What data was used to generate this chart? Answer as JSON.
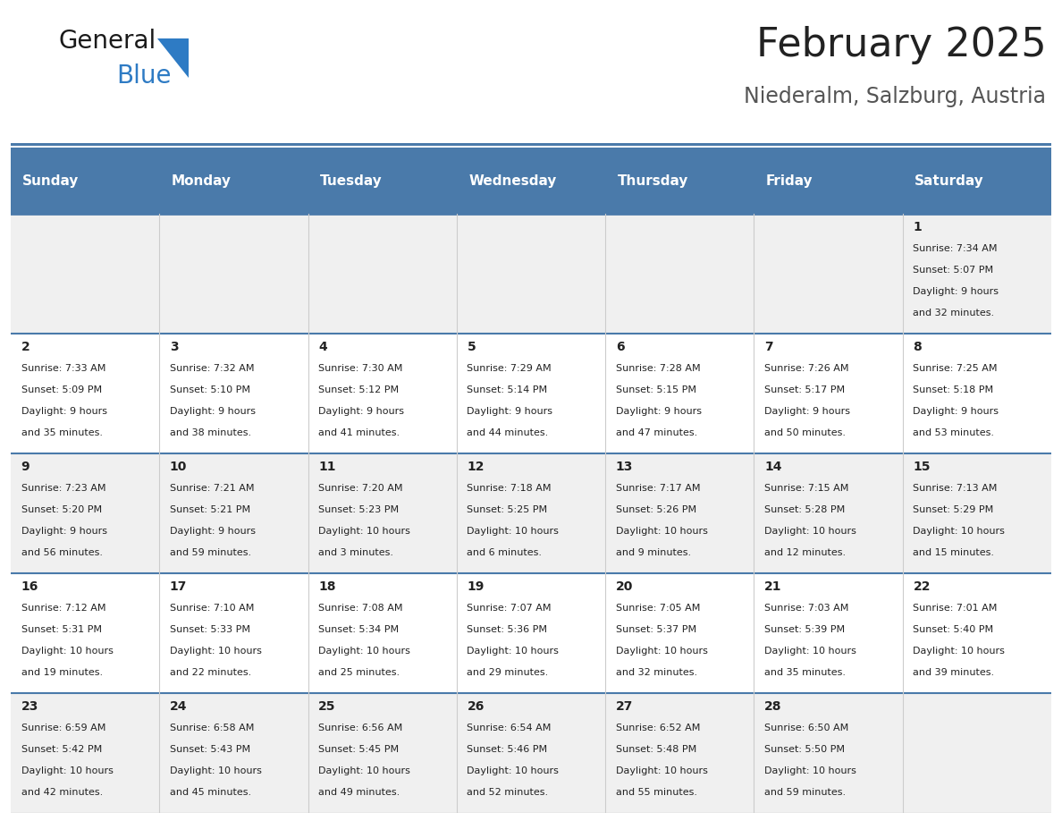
{
  "title": "February 2025",
  "subtitle": "Niederalm, Salzburg, Austria",
  "header_color": "#4a7aaa",
  "header_text_color": "#ffffff",
  "cell_bg_light": "#f0f0f0",
  "cell_bg_white": "#ffffff",
  "border_color": "#4a7aaa",
  "grid_color": "#cccccc",
  "text_color": "#222222",
  "day_names": [
    "Sunday",
    "Monday",
    "Tuesday",
    "Wednesday",
    "Thursday",
    "Friday",
    "Saturday"
  ],
  "title_fontsize": 32,
  "subtitle_fontsize": 17,
  "header_fontsize": 11,
  "day_num_fontsize": 10,
  "info_fontsize": 8,
  "days": [
    {
      "day": 1,
      "col": 6,
      "row": 0,
      "sunrise": "7:34 AM",
      "sunset": "5:07 PM",
      "daylight_h": "9 hours",
      "daylight_m": "32 minutes"
    },
    {
      "day": 2,
      "col": 0,
      "row": 1,
      "sunrise": "7:33 AM",
      "sunset": "5:09 PM",
      "daylight_h": "9 hours",
      "daylight_m": "35 minutes"
    },
    {
      "day": 3,
      "col": 1,
      "row": 1,
      "sunrise": "7:32 AM",
      "sunset": "5:10 PM",
      "daylight_h": "9 hours",
      "daylight_m": "38 minutes"
    },
    {
      "day": 4,
      "col": 2,
      "row": 1,
      "sunrise": "7:30 AM",
      "sunset": "5:12 PM",
      "daylight_h": "9 hours",
      "daylight_m": "41 minutes"
    },
    {
      "day": 5,
      "col": 3,
      "row": 1,
      "sunrise": "7:29 AM",
      "sunset": "5:14 PM",
      "daylight_h": "9 hours",
      "daylight_m": "44 minutes"
    },
    {
      "day": 6,
      "col": 4,
      "row": 1,
      "sunrise": "7:28 AM",
      "sunset": "5:15 PM",
      "daylight_h": "9 hours",
      "daylight_m": "47 minutes"
    },
    {
      "day": 7,
      "col": 5,
      "row": 1,
      "sunrise": "7:26 AM",
      "sunset": "5:17 PM",
      "daylight_h": "9 hours",
      "daylight_m": "50 minutes"
    },
    {
      "day": 8,
      "col": 6,
      "row": 1,
      "sunrise": "7:25 AM",
      "sunset": "5:18 PM",
      "daylight_h": "9 hours",
      "daylight_m": "53 minutes"
    },
    {
      "day": 9,
      "col": 0,
      "row": 2,
      "sunrise": "7:23 AM",
      "sunset": "5:20 PM",
      "daylight_h": "9 hours",
      "daylight_m": "56 minutes"
    },
    {
      "day": 10,
      "col": 1,
      "row": 2,
      "sunrise": "7:21 AM",
      "sunset": "5:21 PM",
      "daylight_h": "9 hours",
      "daylight_m": "59 minutes"
    },
    {
      "day": 11,
      "col": 2,
      "row": 2,
      "sunrise": "7:20 AM",
      "sunset": "5:23 PM",
      "daylight_h": "10 hours",
      "daylight_m": "3 minutes"
    },
    {
      "day": 12,
      "col": 3,
      "row": 2,
      "sunrise": "7:18 AM",
      "sunset": "5:25 PM",
      "daylight_h": "10 hours",
      "daylight_m": "6 minutes"
    },
    {
      "day": 13,
      "col": 4,
      "row": 2,
      "sunrise": "7:17 AM",
      "sunset": "5:26 PM",
      "daylight_h": "10 hours",
      "daylight_m": "9 minutes"
    },
    {
      "day": 14,
      "col": 5,
      "row": 2,
      "sunrise": "7:15 AM",
      "sunset": "5:28 PM",
      "daylight_h": "10 hours",
      "daylight_m": "12 minutes"
    },
    {
      "day": 15,
      "col": 6,
      "row": 2,
      "sunrise": "7:13 AM",
      "sunset": "5:29 PM",
      "daylight_h": "10 hours",
      "daylight_m": "15 minutes"
    },
    {
      "day": 16,
      "col": 0,
      "row": 3,
      "sunrise": "7:12 AM",
      "sunset": "5:31 PM",
      "daylight_h": "10 hours",
      "daylight_m": "19 minutes"
    },
    {
      "day": 17,
      "col": 1,
      "row": 3,
      "sunrise": "7:10 AM",
      "sunset": "5:33 PM",
      "daylight_h": "10 hours",
      "daylight_m": "22 minutes"
    },
    {
      "day": 18,
      "col": 2,
      "row": 3,
      "sunrise": "7:08 AM",
      "sunset": "5:34 PM",
      "daylight_h": "10 hours",
      "daylight_m": "25 minutes"
    },
    {
      "day": 19,
      "col": 3,
      "row": 3,
      "sunrise": "7:07 AM",
      "sunset": "5:36 PM",
      "daylight_h": "10 hours",
      "daylight_m": "29 minutes"
    },
    {
      "day": 20,
      "col": 4,
      "row": 3,
      "sunrise": "7:05 AM",
      "sunset": "5:37 PM",
      "daylight_h": "10 hours",
      "daylight_m": "32 minutes"
    },
    {
      "day": 21,
      "col": 5,
      "row": 3,
      "sunrise": "7:03 AM",
      "sunset": "5:39 PM",
      "daylight_h": "10 hours",
      "daylight_m": "35 minutes"
    },
    {
      "day": 22,
      "col": 6,
      "row": 3,
      "sunrise": "7:01 AM",
      "sunset": "5:40 PM",
      "daylight_h": "10 hours",
      "daylight_m": "39 minutes"
    },
    {
      "day": 23,
      "col": 0,
      "row": 4,
      "sunrise": "6:59 AM",
      "sunset": "5:42 PM",
      "daylight_h": "10 hours",
      "daylight_m": "42 minutes"
    },
    {
      "day": 24,
      "col": 1,
      "row": 4,
      "sunrise": "6:58 AM",
      "sunset": "5:43 PM",
      "daylight_h": "10 hours",
      "daylight_m": "45 minutes"
    },
    {
      "day": 25,
      "col": 2,
      "row": 4,
      "sunrise": "6:56 AM",
      "sunset": "5:45 PM",
      "daylight_h": "10 hours",
      "daylight_m": "49 minutes"
    },
    {
      "day": 26,
      "col": 3,
      "row": 4,
      "sunrise": "6:54 AM",
      "sunset": "5:46 PM",
      "daylight_h": "10 hours",
      "daylight_m": "52 minutes"
    },
    {
      "day": 27,
      "col": 4,
      "row": 4,
      "sunrise": "6:52 AM",
      "sunset": "5:48 PM",
      "daylight_h": "10 hours",
      "daylight_m": "55 minutes"
    },
    {
      "day": 28,
      "col": 5,
      "row": 4,
      "sunrise": "6:50 AM",
      "sunset": "5:50 PM",
      "daylight_h": "10 hours",
      "daylight_m": "59 minutes"
    }
  ]
}
